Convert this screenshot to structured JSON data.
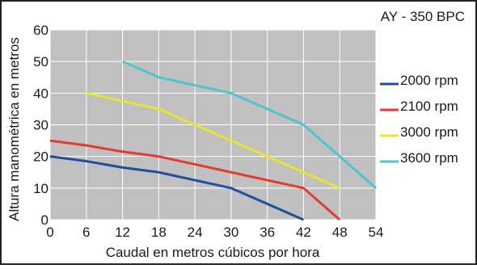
{
  "chart_data": {
    "type": "line",
    "title": "AY - 350 BPC",
    "xlabel": "Caudal en metros cúbicos por hora",
    "ylabel": "Altura manométrica en metros",
    "xlim": [
      0,
      54
    ],
    "ylim": [
      0,
      60
    ],
    "x_ticks": [
      0,
      6,
      12,
      18,
      24,
      30,
      36,
      42,
      48,
      54
    ],
    "y_ticks": [
      0,
      10,
      20,
      30,
      40,
      50,
      60
    ],
    "grid": true,
    "plot_background": "#c0c0c0",
    "legend_position": "right",
    "series": [
      {
        "name": "2000 rpm",
        "color": "#1f4e9c",
        "x": [
          0,
          6,
          12,
          18,
          24,
          30,
          36,
          42
        ],
        "y": [
          20,
          18.5,
          16.5,
          15,
          12.5,
          10,
          5,
          0
        ]
      },
      {
        "name": "2100 rpm",
        "color": "#e53a2e",
        "x": [
          0,
          6,
          12,
          18,
          24,
          30,
          36,
          42,
          48
        ],
        "y": [
          25,
          23.5,
          21.5,
          20,
          17.5,
          15,
          12.5,
          10,
          0
        ]
      },
      {
        "name": "3000 rpm",
        "color": "#e6e632",
        "x": [
          6,
          12,
          18,
          24,
          30,
          36,
          42,
          48
        ],
        "y": [
          40,
          37.5,
          35,
          30,
          25,
          20,
          15,
          10
        ]
      },
      {
        "name": "3600 rpm",
        "color": "#4fc3cf",
        "x": [
          12,
          18,
          24,
          30,
          36,
          42,
          48,
          54
        ],
        "y": [
          50,
          45,
          42.5,
          40,
          35,
          30,
          20,
          10
        ]
      }
    ]
  }
}
